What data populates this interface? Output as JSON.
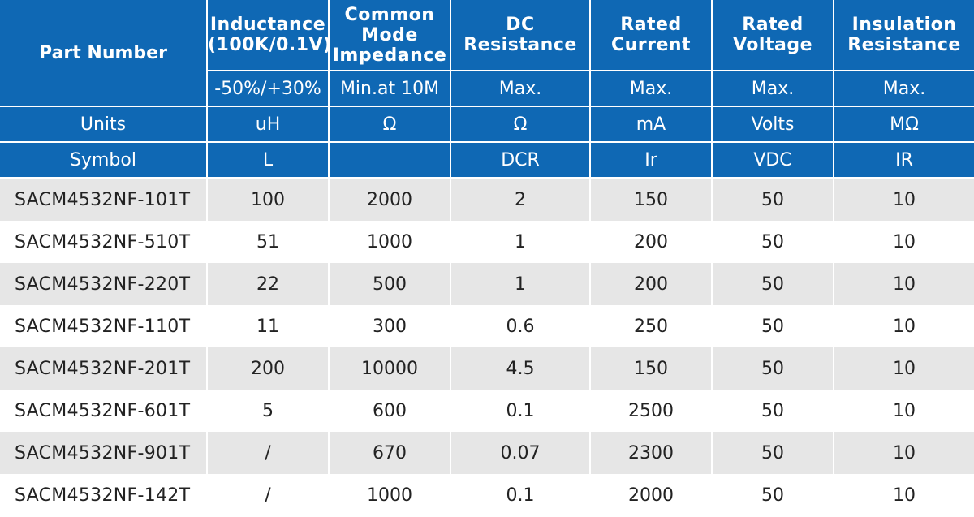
{
  "table": {
    "headers": {
      "part_number": "Part Number",
      "columns": [
        {
          "lines": [
            "Inductance",
            "(100K/0.1V)"
          ],
          "tolerance": "-50%/+30%",
          "unit": "uH",
          "symbol": "L"
        },
        {
          "lines": [
            "Common",
            "Mode",
            "Impedance"
          ],
          "tolerance": "Min.at 10M",
          "unit": "Ω",
          "symbol": ""
        },
        {
          "lines": [
            "DC",
            "Resistance"
          ],
          "tolerance": "Max.",
          "unit": "Ω",
          "symbol": "DCR"
        },
        {
          "lines": [
            "Rated",
            "Current"
          ],
          "tolerance": "Max.",
          "unit": "mA",
          "symbol": "Ir"
        },
        {
          "lines": [
            "Rated",
            "Voltage"
          ],
          "tolerance": "Max.",
          "unit": "Volts",
          "symbol": "VDC"
        },
        {
          "lines": [
            "Insulation",
            "Resistance"
          ],
          "tolerance": "Max.",
          "unit": "MΩ",
          "symbol": "IR"
        }
      ],
      "units_label": "Units",
      "symbol_label": "Symbol"
    },
    "rows": [
      {
        "part": "SACM4532NF-101T",
        "values": [
          "100",
          "2000",
          "2",
          "150",
          "50",
          "10"
        ]
      },
      {
        "part": "SACM4532NF-510T",
        "values": [
          "51",
          "1000",
          "1",
          "200",
          "50",
          "10"
        ]
      },
      {
        "part": "SACM4532NF-220T",
        "values": [
          "22",
          "500",
          "1",
          "200",
          "50",
          "10"
        ]
      },
      {
        "part": "SACM4532NF-110T",
        "values": [
          "11",
          "300",
          "0.6",
          "250",
          "50",
          "10"
        ]
      },
      {
        "part": "SACM4532NF-201T",
        "values": [
          "200",
          "10000",
          "4.5",
          "150",
          "50",
          "10"
        ]
      },
      {
        "part": "SACM4532NF-601T",
        "values": [
          "5",
          "600",
          "0.1",
          "2500",
          "50",
          "10"
        ]
      },
      {
        "part": "SACM4532NF-901T",
        "values": [
          "/",
          "670",
          "0.07",
          "2300",
          "50",
          "10"
        ]
      },
      {
        "part": "SACM4532NF-142T",
        "values": [
          "/",
          "1000",
          "0.1",
          "2000",
          "50",
          "10"
        ]
      }
    ]
  }
}
